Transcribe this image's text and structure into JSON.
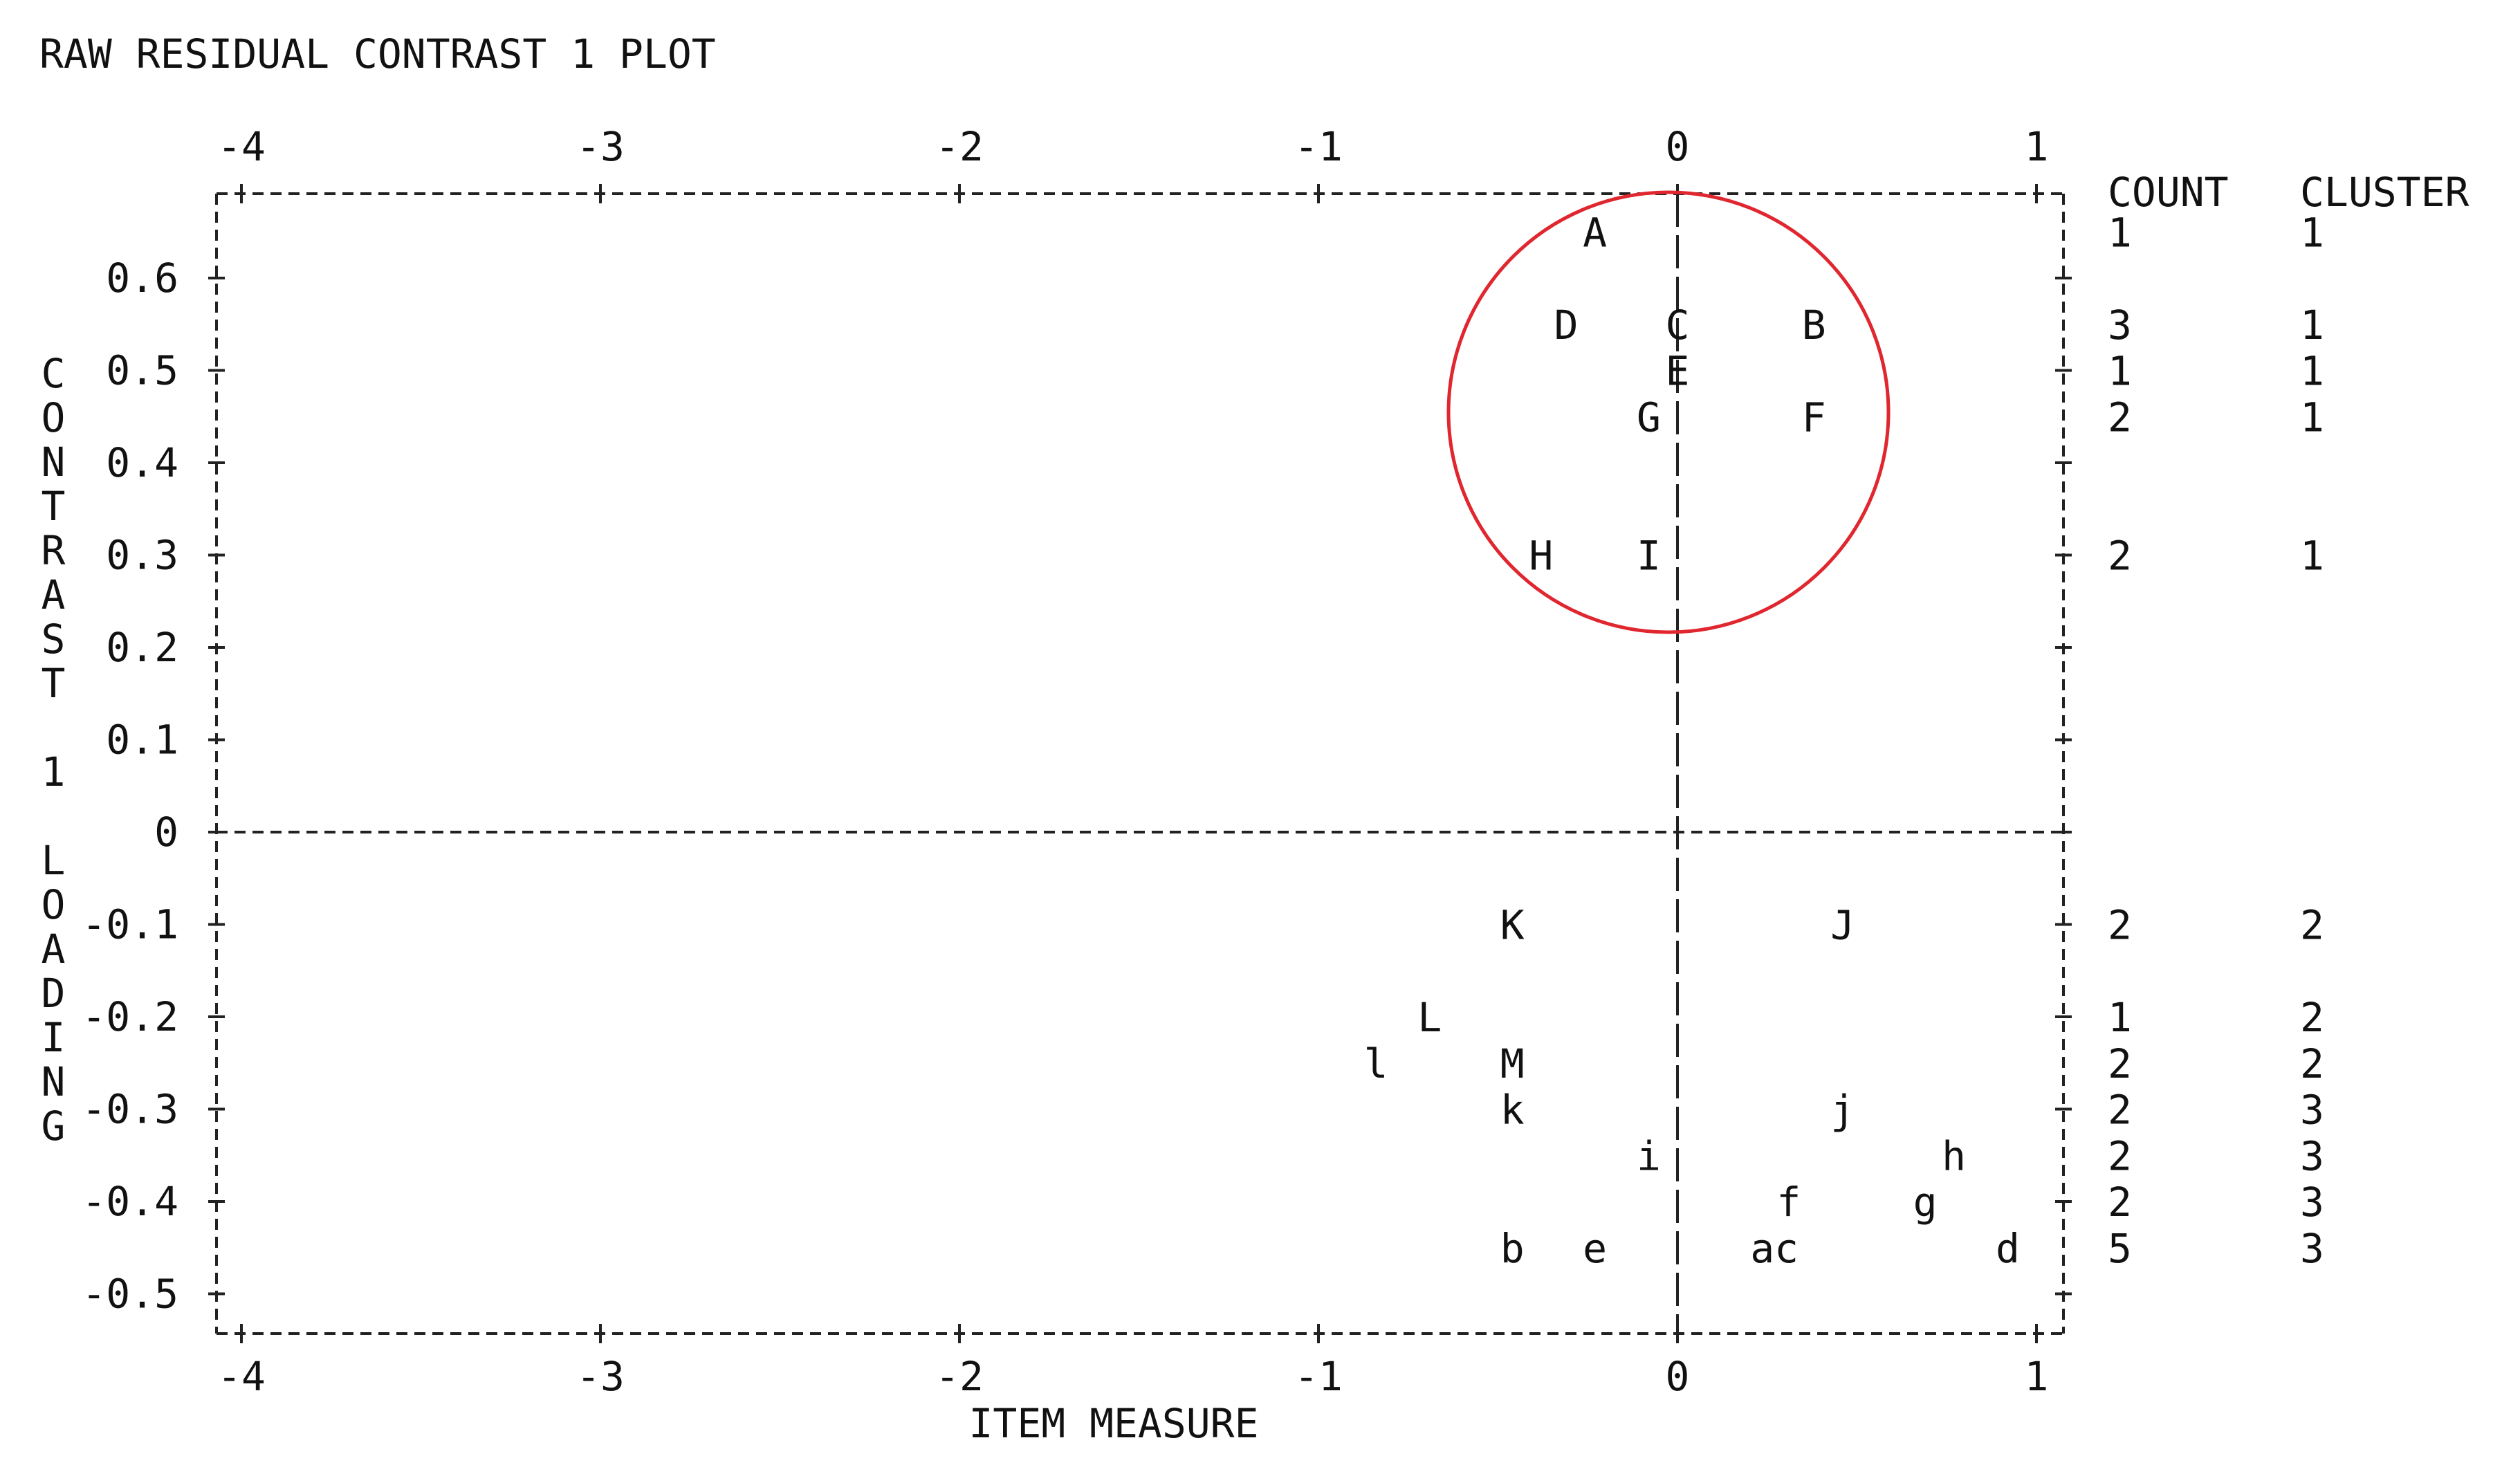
{
  "chart_data": {
    "type": "scatter",
    "title": "RAW RESIDUAL CONTRAST 1 PLOT",
    "xlabel": "ITEM MEASURE",
    "ylabel": "CONTRAST 1 LOADING",
    "xlim": [
      -4,
      1.1
    ],
    "ylim": [
      -0.55,
      0.7
    ],
    "x_ticks": [
      "-4",
      "-3",
      "-2",
      "-1",
      "0",
      "1"
    ],
    "y_ticks": [
      "0.6",
      "0.5",
      "0.4",
      "0.3",
      "0.2",
      "0.1",
      "0",
      "-0.1",
      "-0.2",
      "-0.3",
      "-0.4",
      "-0.5"
    ],
    "grid": false,
    "reference_lines": {
      "x": 0,
      "y": 0
    },
    "highlight_circle_color": "#e0262e",
    "points": [
      {
        "label": "A",
        "x": -0.23,
        "y": 0.65
      },
      {
        "label": "D",
        "x": -0.31,
        "y": 0.55
      },
      {
        "label": "C",
        "x": 0.0,
        "y": 0.55
      },
      {
        "label": "B",
        "x": 0.38,
        "y": 0.55
      },
      {
        "label": "E",
        "x": 0.0,
        "y": 0.5
      },
      {
        "label": "G",
        "x": -0.08,
        "y": 0.45
      },
      {
        "label": "F",
        "x": 0.38,
        "y": 0.45
      },
      {
        "label": "H",
        "x": -0.38,
        "y": 0.3
      },
      {
        "label": "I",
        "x": -0.08,
        "y": 0.3
      },
      {
        "label": "K",
        "x": -0.46,
        "y": -0.1
      },
      {
        "label": "J",
        "x": 0.46,
        "y": -0.1
      },
      {
        "label": "L",
        "x": -0.69,
        "y": -0.2
      },
      {
        "label": "l",
        "x": -0.84,
        "y": -0.25
      },
      {
        "label": "M",
        "x": -0.46,
        "y": -0.25
      },
      {
        "label": "k",
        "x": -0.46,
        "y": -0.3
      },
      {
        "label": "j",
        "x": 0.46,
        "y": -0.3
      },
      {
        "label": "i",
        "x": -0.08,
        "y": -0.35
      },
      {
        "label": "h",
        "x": 0.77,
        "y": -0.35
      },
      {
        "label": "f",
        "x": 0.31,
        "y": -0.4
      },
      {
        "label": "g",
        "x": 0.69,
        "y": -0.4
      },
      {
        "label": "b",
        "x": -0.46,
        "y": -0.45
      },
      {
        "label": "e",
        "x": -0.23,
        "y": -0.45
      },
      {
        "label": "ac",
        "x": 0.27,
        "y": -0.45
      },
      {
        "label": "d",
        "x": 0.92,
        "y": -0.45
      }
    ],
    "count_header": "COUNT",
    "cluster_header": "CLUSTER",
    "rows": [
      {
        "y": 0.65,
        "count": "1",
        "cluster": "1"
      },
      {
        "y": 0.55,
        "count": "3",
        "cluster": "1"
      },
      {
        "y": 0.5,
        "count": "1",
        "cluster": "1"
      },
      {
        "y": 0.45,
        "count": "2",
        "cluster": "1"
      },
      {
        "y": 0.3,
        "count": "2",
        "cluster": "1"
      },
      {
        "y": -0.1,
        "count": "2",
        "cluster": "2"
      },
      {
        "y": -0.2,
        "count": "1",
        "cluster": "2"
      },
      {
        "y": -0.25,
        "count": "2",
        "cluster": "2"
      },
      {
        "y": -0.3,
        "count": "2",
        "cluster": "3"
      },
      {
        "y": -0.35,
        "count": "2",
        "cluster": "3"
      },
      {
        "y": -0.4,
        "count": "2",
        "cluster": "3"
      },
      {
        "y": -0.45,
        "count": "5",
        "cluster": "3"
      }
    ]
  }
}
